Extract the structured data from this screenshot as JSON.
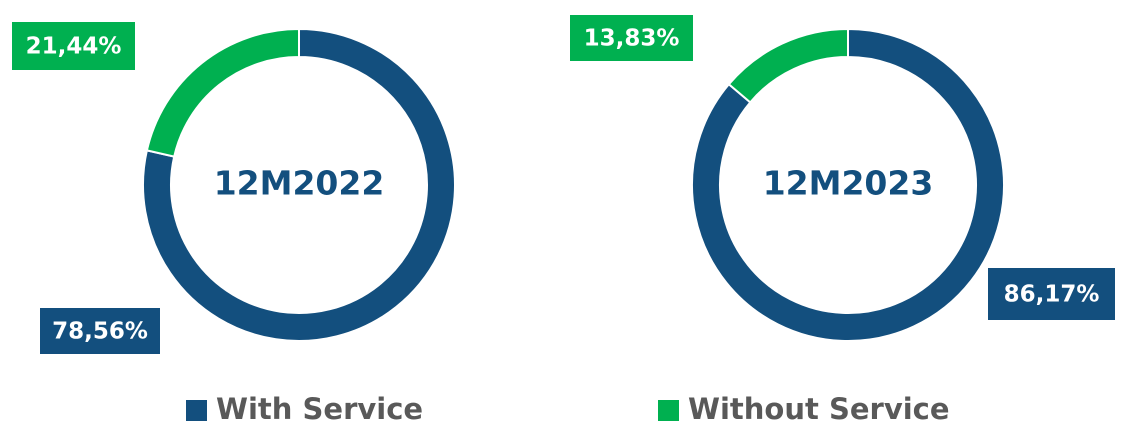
{
  "chart_data": [
    {
      "type": "donut",
      "title": "12M2022",
      "categories": [
        "With Service",
        "Without Service"
      ],
      "values": [
        78.56,
        21.44
      ],
      "value_labels": [
        "78,56%",
        "21,44%"
      ],
      "colors": [
        "#134f7e",
        "#00b050"
      ]
    },
    {
      "type": "donut",
      "title": "12M2023",
      "categories": [
        "With Service",
        "Without Service"
      ],
      "values": [
        86.17,
        13.83
      ],
      "value_labels": [
        "86,17%",
        "13,83%"
      ],
      "colors": [
        "#134f7e",
        "#00b050"
      ]
    }
  ]
}
